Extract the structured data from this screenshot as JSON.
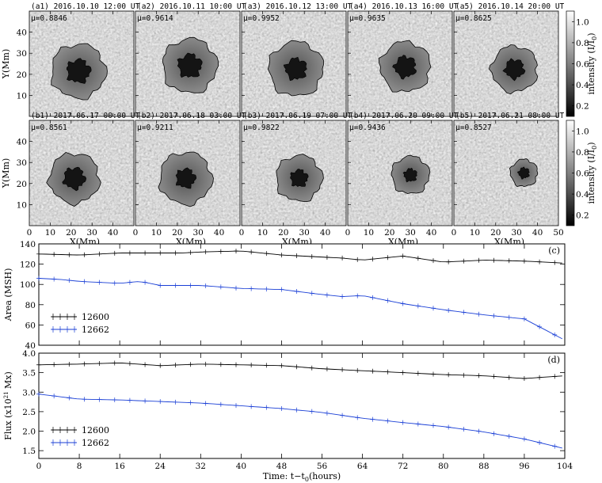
{
  "chart_data": [
    {
      "type": "image-grid",
      "panel_labels": [
        "(a1) 2016.10.10 12:00 UT",
        "(a2) 2016.10.11 10:00 UT",
        "(a3) 2016.10.12 13:00 UT",
        "(a4) 2016.10.13 16:00 UT",
        "(a5) 2016.10.14 20:00 UT",
        "(b1) 2017.06.17 00:00 UT",
        "(b2) 2017.06.18 03:00 UT",
        "(b3) 2017.06.19 07:00 UT",
        "(b4) 2017.06.20 09:00 UT",
        "(b5) 2017.06.21 08:00 UT"
      ],
      "mu_values": [
        "μ=0.8846",
        "μ=0.9614",
        "μ=0.9952",
        "μ=0.9635",
        "μ=0.8625",
        "μ=0.8561",
        "μ=0.9211",
        "μ=0.9822",
        "μ=0.9436",
        "μ=0.8527"
      ],
      "xlabel": "X(Mm)",
      "ylabel": "Y(Mm)",
      "xlim": [
        0,
        50
      ],
      "ylim": [
        0,
        50
      ],
      "x_ticks": [
        "0",
        "10",
        "20",
        "30",
        "40",
        "50"
      ],
      "y_ticks_top": [
        "10",
        "20",
        "30",
        "40"
      ],
      "y_ticks_bottom": [
        "10",
        "20",
        "30",
        "40"
      ],
      "colorbar": {
        "label": "intensity (I/I",
        "label_sub": "0",
        "label_end": ")",
        "ticks": [
          "0.2",
          "0.4",
          "0.6",
          "0.8",
          "1.0"
        ],
        "range": [
          0.1,
          1.1
        ]
      }
    },
    {
      "type": "line",
      "panel_label": "(c)",
      "ylabel": "Area (MSH)",
      "xlim": [
        0,
        104
      ],
      "ylim": [
        40,
        140
      ],
      "y_ticks": [
        "40",
        "60",
        "80",
        "100",
        "120",
        "140"
      ],
      "series": [
        {
          "name": "12600",
          "color": "#000000",
          "x": [
            0,
            8,
            16,
            24,
            28,
            32,
            40,
            48,
            56,
            60,
            64,
            72,
            80,
            88,
            96,
            104
          ],
          "values": [
            130,
            129,
            131,
            131,
            131,
            132,
            133,
            129,
            127,
            126,
            124,
            128,
            122,
            124,
            123,
            121
          ]
        },
        {
          "name": "12662",
          "color": "#1a3fd6",
          "x": [
            0,
            4,
            8,
            16,
            20,
            24,
            32,
            40,
            48,
            56,
            60,
            64,
            72,
            80,
            88,
            96,
            104
          ],
          "values": [
            106,
            105,
            103,
            101,
            103,
            99,
            99,
            96,
            95,
            90,
            88,
            89,
            81,
            75,
            70,
            66,
            45
          ]
        }
      ]
    },
    {
      "type": "line",
      "panel_label": "(d)",
      "ylabel": "Flux (x10",
      "ylabel_sup": "21",
      "ylabel_end": " Mx)",
      "xlabel": "Time: t−t",
      "xlabel_sub": "0",
      "xlabel_end": "(hours)",
      "xlim": [
        0,
        104
      ],
      "ylim": [
        1.3,
        4.0
      ],
      "x_ticks": [
        "0",
        "8",
        "16",
        "24",
        "32",
        "40",
        "48",
        "56",
        "64",
        "72",
        "80",
        "88",
        "96",
        "104"
      ],
      "y_ticks": [
        "1.5",
        "2.0",
        "2.5",
        "3.0",
        "3.5",
        "4.0"
      ],
      "series": [
        {
          "name": "12600",
          "color": "#000000",
          "x": [
            0,
            8,
            16,
            24,
            32,
            40,
            48,
            56,
            64,
            72,
            80,
            88,
            96,
            104
          ],
          "values": [
            3.7,
            3.72,
            3.75,
            3.68,
            3.72,
            3.7,
            3.68,
            3.6,
            3.55,
            3.5,
            3.45,
            3.42,
            3.35,
            3.42
          ]
        },
        {
          "name": "12662",
          "color": "#1a3fd6",
          "x": [
            0,
            8,
            16,
            24,
            32,
            40,
            48,
            56,
            64,
            72,
            80,
            88,
            96,
            104
          ],
          "values": [
            2.95,
            2.82,
            2.8,
            2.76,
            2.72,
            2.65,
            2.58,
            2.48,
            2.33,
            2.22,
            2.12,
            1.98,
            1.8,
            1.55
          ]
        }
      ]
    }
  ]
}
